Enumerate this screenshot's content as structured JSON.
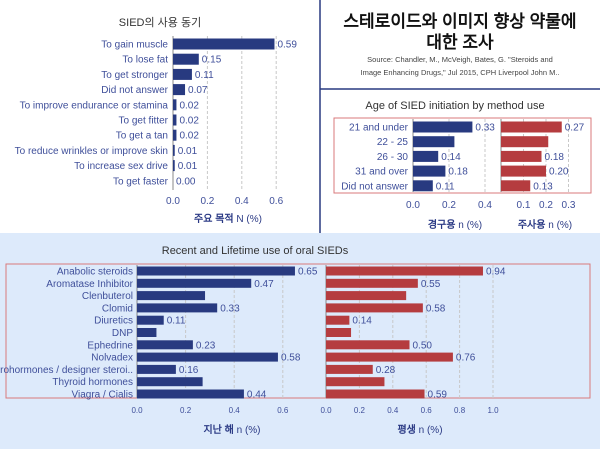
{
  "header": {
    "title_line1": "스테로이드와 이미지 향상 약물에",
    "title_line2": "대한 조사",
    "source_line1": "Source: Chandler, M., McVeigh, Bates, G. \"Steroids and",
    "source_line2": "Image Enhancing Drugs,\" Jul 2015, CPH Liverpool John M.."
  },
  "colors": {
    "oral": "#283a80",
    "injected": "#b53c3f",
    "bottom_bg": "#ddeafb",
    "divider": "#283a80",
    "box": "#d9797b"
  },
  "chart_data": [
    {
      "type": "bar",
      "title": "SIED의 사용 동기",
      "xlabel_bold": "주요 목적",
      "xlabel": "N (%)",
      "categories": [
        "To gain muscle",
        "To lose fat",
        "To get stronger",
        "Did not answer",
        "To improve endurance or stamina",
        "To get fitter",
        "To get a tan",
        "To reduce wrinkles or improve skin",
        "To increase sex drive",
        "To get faster"
      ],
      "values": [
        0.59,
        0.15,
        0.11,
        0.07,
        0.02,
        0.02,
        0.02,
        0.01,
        0.01,
        0.0
      ],
      "value_labels": [
        "0.59",
        "0.15",
        "0.11",
        "0.07",
        "0.02",
        "0.02",
        "0.02",
        "0.01",
        "0.01",
        "0.00"
      ],
      "xticks": [
        "0.0",
        "0.2",
        "0.4",
        "0.6"
      ],
      "xlim": [
        0,
        0.75
      ],
      "grid": true
    },
    {
      "type": "bar",
      "title": "Age of SIED initiation by method use",
      "categories": [
        "21 and under",
        "22 - 25",
        "26 - 30",
        "31 and over",
        "Did not answer"
      ],
      "series": [
        {
          "name": "경구용",
          "xlabel": "n (%)",
          "values": [
            0.33,
            0.23,
            0.14,
            0.18,
            0.11
          ],
          "value_labels": [
            "0.33",
            "",
            "0.14",
            "0.18",
            "0.11"
          ],
          "xticks": [
            "0.0",
            "0.2",
            "0.4"
          ],
          "xlim": [
            0,
            0.45
          ]
        },
        {
          "name": "주사용",
          "xlabel": "n (%)",
          "values": [
            0.27,
            0.21,
            0.18,
            0.2,
            0.13
          ],
          "value_labels": [
            "0.27",
            "",
            "0.18",
            "0.20",
            "0.13"
          ],
          "xticks": [
            "0.1",
            "0.2",
            "0.3"
          ],
          "xlim": [
            0,
            0.38
          ]
        }
      ],
      "grid": true
    },
    {
      "type": "bar",
      "title": "Recent and Lifetime use of oral SIEDs",
      "categories": [
        "Anabolic steroids",
        "Aromatase Inhibitor",
        "Clenbuterol",
        "Clomid",
        "Diuretics",
        "DNP",
        "Ephedrine",
        "Nolvadex",
        "Prohormones / designer steroi..",
        "Thyroid hormones",
        "Viagra / Cialis"
      ],
      "series": [
        {
          "name": "지난 해",
          "xlabel": "n (%)",
          "values": [
            0.65,
            0.47,
            0.28,
            0.33,
            0.11,
            0.08,
            0.23,
            0.58,
            0.16,
            0.27,
            0.44
          ],
          "value_labels": [
            "0.65",
            "0.47",
            "",
            "0.33",
            "0.11",
            "",
            "0.23",
            "0.58",
            "0.16",
            "",
            "0.44"
          ],
          "xticks": [
            "0.0",
            "0.2",
            "0.4",
            "0.6"
          ],
          "xlim": [
            0,
            0.75
          ]
        },
        {
          "name": "평생",
          "xlabel": "n (%)",
          "values": [
            0.94,
            0.55,
            0.48,
            0.58,
            0.14,
            0.15,
            0.5,
            0.76,
            0.28,
            0.35,
            0.59
          ],
          "value_labels": [
            "0.94",
            "0.55",
            "",
            "0.58",
            "0.14",
            "",
            "0.50",
            "0.76",
            "0.28",
            "",
            "0.59"
          ],
          "xticks": [
            "0.0",
            "0.2",
            "0.4",
            "0.6",
            "0.8",
            "1.0"
          ],
          "xlim": [
            0,
            1.1
          ]
        }
      ],
      "grid": true
    }
  ]
}
